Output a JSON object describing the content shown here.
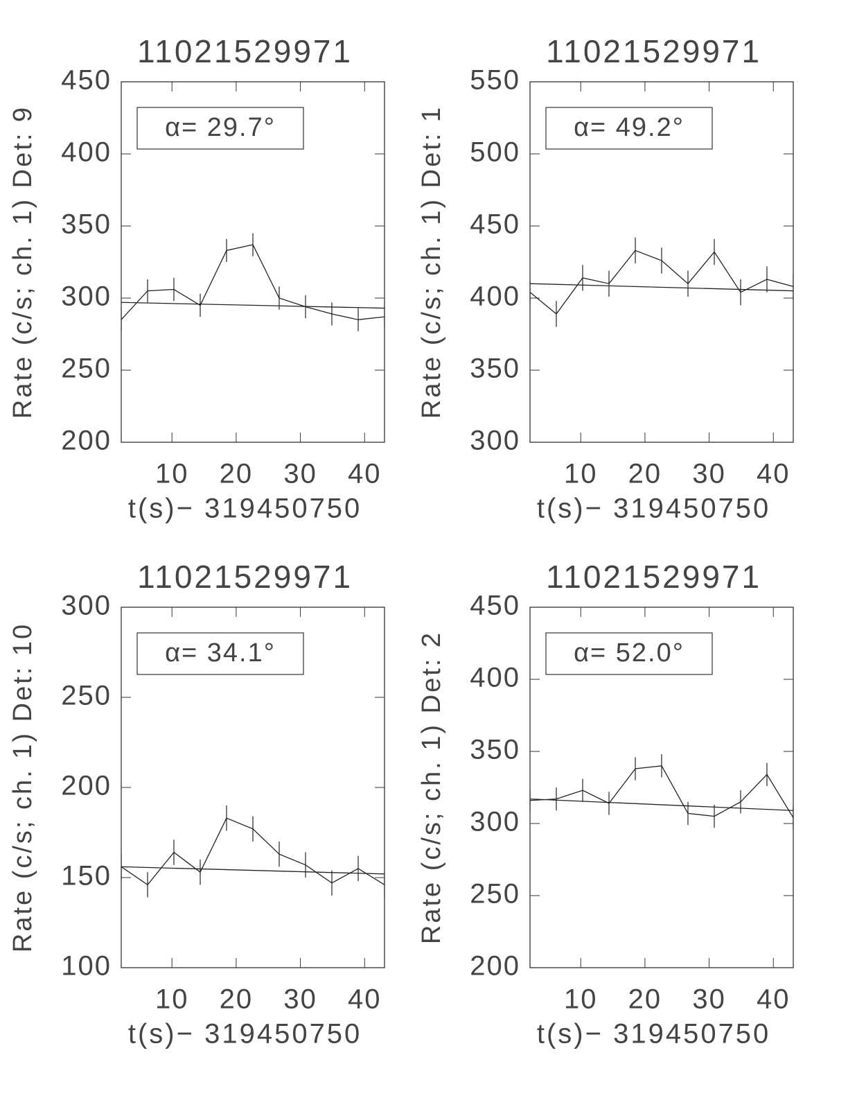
{
  "chart_data": [
    {
      "type": "line",
      "title": "11021529971",
      "xlabel": "t(s)− 319450750",
      "ylabel": "Rate (c/s; ch. 1) Det: 9",
      "annotation": "α= 29.7°",
      "x": [
        2.1,
        6.2,
        10.3,
        14.4,
        18.5,
        22.6,
        26.7,
        30.8,
        34.9,
        39.0,
        43.1
      ],
      "series": [
        {
          "color": "#222222",
          "values": [
            285,
            305,
            306,
            295,
            333,
            337,
            300,
            294,
            289,
            285,
            287
          ],
          "errors": [
            8,
            8,
            8,
            8,
            8,
            8,
            8,
            8,
            8,
            8,
            8
          ]
        }
      ],
      "fit": {
        "color": "#222222",
        "x": [
          2.1,
          43.1
        ],
        "values": [
          297,
          293
        ]
      },
      "xlim": [
        2.1,
        43.1
      ],
      "ylim": [
        200,
        450
      ],
      "xticks": [
        10,
        20,
        30,
        40
      ],
      "yticks": [
        200,
        250,
        300,
        350,
        400,
        450
      ]
    },
    {
      "type": "line",
      "title": "11021529971",
      "xlabel": "t(s)− 319450750",
      "ylabel": "Rate (c/s; ch. 1) Det: 1",
      "annotation": "α= 49.2°",
      "x": [
        2.1,
        6.2,
        10.3,
        14.4,
        18.5,
        22.6,
        26.7,
        30.8,
        34.9,
        39.0,
        43.1
      ],
      "series": [
        {
          "color": "#222222",
          "values": [
            404,
            389,
            414,
            410,
            433,
            426,
            410,
            432,
            404,
            413,
            408
          ],
          "errors": [
            9,
            9,
            9,
            9,
            9,
            9,
            9,
            9,
            9,
            9,
            9
          ]
        }
      ],
      "fit": {
        "color": "#222222",
        "x": [
          2.1,
          43.1
        ],
        "values": [
          410,
          405
        ]
      },
      "xlim": [
        2.1,
        43.1
      ],
      "ylim": [
        300,
        550
      ],
      "xticks": [
        10,
        20,
        30,
        40
      ],
      "yticks": [
        300,
        350,
        400,
        450,
        500,
        550
      ]
    },
    {
      "type": "line",
      "title": "11021529971",
      "xlabel": "t(s)− 319450750",
      "ylabel": "Rate (c/s; ch. 1) Det: 10",
      "annotation": "α= 34.1°",
      "x": [
        2.1,
        6.2,
        10.3,
        14.4,
        18.5,
        22.6,
        26.7,
        30.8,
        34.9,
        39.0,
        43.1
      ],
      "series": [
        {
          "color": "#222222",
          "values": [
            156,
            146,
            164,
            153,
            183,
            177,
            163,
            157,
            147,
            155,
            146
          ],
          "errors": [
            7,
            7,
            7,
            7,
            7,
            7,
            7,
            7,
            7,
            7,
            7
          ]
        }
      ],
      "fit": {
        "color": "#222222",
        "x": [
          2.1,
          43.1
        ],
        "values": [
          156,
          152
        ]
      },
      "xlim": [
        2.1,
        43.1
      ],
      "ylim": [
        100,
        300
      ],
      "xticks": [
        10,
        20,
        30,
        40
      ],
      "yticks": [
        100,
        150,
        200,
        250,
        300
      ]
    },
    {
      "type": "line",
      "title": "11021529971",
      "xlabel": "t(s)− 319450750",
      "ylabel": "Rate (c/s; ch. 1) Det: 2",
      "annotation": "α= 52.0°",
      "x": [
        2.1,
        6.2,
        10.3,
        14.4,
        18.5,
        22.6,
        26.7,
        30.8,
        34.9,
        39.0,
        43.1
      ],
      "series": [
        {
          "color": "#222222",
          "values": [
            316,
            317,
            323,
            314,
            338,
            340,
            307,
            305,
            315,
            334,
            304
          ],
          "errors": [
            8,
            8,
            8,
            8,
            8,
            8,
            8,
            8,
            8,
            8,
            8
          ]
        }
      ],
      "fit": {
        "color": "#222222",
        "x": [
          2.1,
          43.1
        ],
        "values": [
          317,
          309
        ]
      },
      "xlim": [
        2.1,
        43.1
      ],
      "ylim": [
        200,
        450
      ],
      "xticks": [
        10,
        20,
        30,
        40
      ],
      "yticks": [
        200,
        250,
        300,
        350,
        400,
        450
      ]
    }
  ]
}
